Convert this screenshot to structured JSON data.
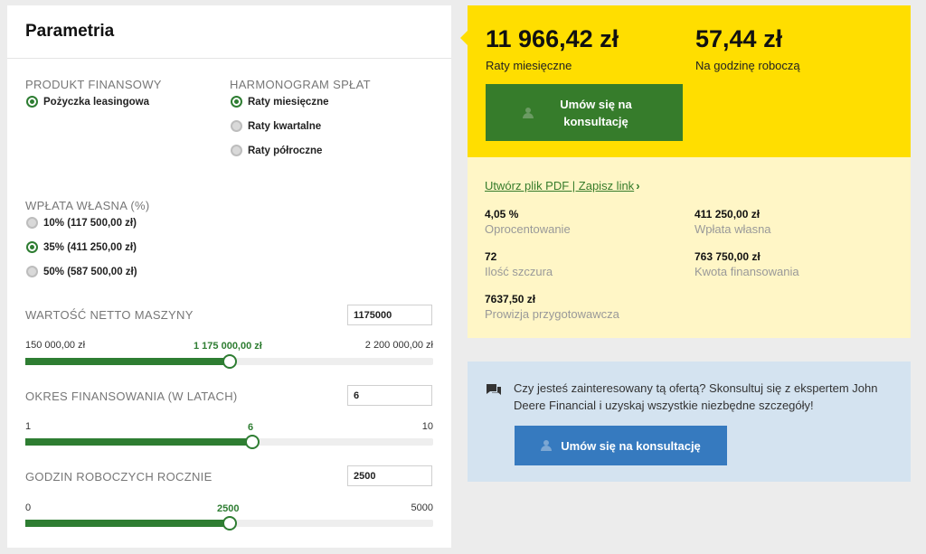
{
  "params": {
    "title": "Parametria",
    "product_label": "PRODUKT FINANSOWY",
    "product_options": [
      {
        "label": "Pożyczka leasingowa",
        "checked": true
      }
    ],
    "schedule_label": "HARMONOGRAM SPŁAT",
    "schedule_options": [
      {
        "label": "Raty miesięczne",
        "checked": true
      },
      {
        "label": "Raty kwartalne",
        "checked": false
      },
      {
        "label": "Raty półroczne",
        "checked": false
      }
    ],
    "downpayment_label": "WPŁATA WŁASNA (%)",
    "downpayment_options": [
      {
        "label": "10% (117 500,00 zł)",
        "checked": false
      },
      {
        "label": "35% (411 250,00 zł)",
        "checked": true
      },
      {
        "label": "50% (587 500,00 zł)",
        "checked": false
      }
    ],
    "machine_value": {
      "label": "WARTOŚĆ NETTO MASZYNY",
      "input_value": "1175000",
      "min_label": "150 000,00 zł",
      "current_label": "1 175 000,00 zł",
      "max_label": "2 200 000,00 zł",
      "min": 150000,
      "max": 2200000,
      "value": 1175000
    },
    "financing_period": {
      "label": "OKRES FINANSOWANIA (W LATACH)",
      "input_value": "6",
      "min_label": "1",
      "current_label": "6",
      "max_label": "10",
      "min": 1,
      "max": 10,
      "value": 6
    },
    "work_hours": {
      "label": "GODZIN ROBOCZYCH ROCZNIE",
      "input_value": "2500",
      "min_label": "0",
      "current_label": "2500",
      "max_label": "5000",
      "min": 0,
      "max": 5000,
      "value": 2500
    }
  },
  "summary": {
    "monthly_amount": "11 966,42 zł",
    "monthly_label": "Raty miesięczne",
    "hourly_amount": "57,44 zł",
    "hourly_label": "Na godzinę roboczą",
    "consult_button": "Umów się na konsultację",
    "pdf_link": "Utwórz plik PDF | Zapisz link",
    "stats": [
      {
        "value": "4,05 %",
        "label": "Oprocentowanie"
      },
      {
        "value": "411 250,00 zł",
        "label": "Wpłata własna"
      },
      {
        "value": "72",
        "label": "Ilość szczura"
      },
      {
        "value": "763 750,00 zł",
        "label": "Kwota finansowania"
      },
      {
        "value": "7637,50 zł",
        "label": "Prowizja przygotowawcza"
      }
    ]
  },
  "contact": {
    "text": "Czy jesteś zainteresowany tą ofertą? Skonsultuj się z ekspertem John Deere Financial i uzyskaj wszystkie niezbędne szczegóły!",
    "button": "Umów się na konsultację",
    "icon": "chat-icon"
  },
  "colors": {
    "green": "#367c2b",
    "yellow": "#ffde00",
    "cream": "#fff6c6",
    "blue_panel": "#d4e3f0",
    "blue_button": "#367abf"
  }
}
